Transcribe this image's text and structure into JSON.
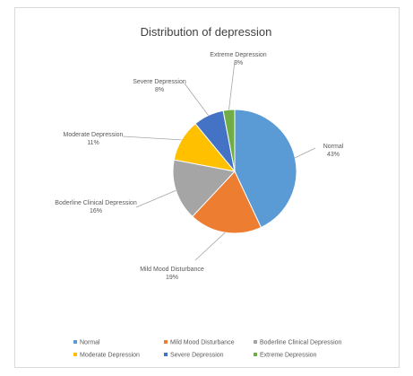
{
  "chart_data": {
    "type": "pie",
    "title": "Distribution of depression",
    "series": [
      {
        "name": "Normal",
        "value": 43,
        "label": "43%",
        "color": "#5B9BD5"
      },
      {
        "name": "Mild Mood Disturbance",
        "value": 19,
        "label": "19%",
        "color": "#ED7D31"
      },
      {
        "name": "Boderline Clinical Depression",
        "value": 16,
        "label": "16%",
        "color": "#A5A5A5"
      },
      {
        "name": "Moderate Depression",
        "value": 11,
        "label": "11%",
        "color": "#FFC000"
      },
      {
        "name": "Severe Depression",
        "value": 8,
        "label": "8%",
        "color": "#4472C4"
      },
      {
        "name": "Extreme Depression",
        "value": 3,
        "label": "3%",
        "color": "#70AD47"
      }
    ],
    "legend": {
      "position": "bottom",
      "items": [
        {
          "name": "Normal"
        },
        {
          "name": "Mild Mood Disturbance"
        },
        {
          "name": "Boderline Clinical Depression"
        },
        {
          "name": "Moderate Depression"
        },
        {
          "name": "Severe Depression"
        },
        {
          "name": "Extreme Depression"
        }
      ]
    }
  }
}
